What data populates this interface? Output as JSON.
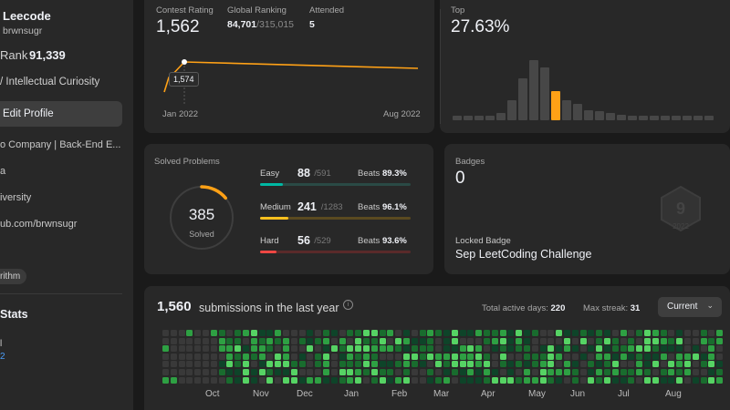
{
  "sidebar": {
    "name": "Leecode",
    "username": "brwnsugr",
    "rank_label": "Rank",
    "rank_value": "91,339",
    "bio": "/ Intellectual Curiosity",
    "edit_label": "Edit Profile",
    "company": "o Company | Back-End E...",
    "location": "a",
    "school": "iversity",
    "github": "ub.com/brwnsugr",
    "tag": "rithm",
    "stats_heading": "Stats",
    "stat_line1": "l",
    "stat_line2": "2"
  },
  "contest": {
    "rating_label": "Contest Rating",
    "rating_value": "1,562",
    "global_label": "Global Ranking",
    "global_value": "84,701",
    "global_total": "/315,015",
    "attended_label": "Attended",
    "attended_value": "5",
    "tooltip": "1,574",
    "x_start": "Jan 2022",
    "x_end": "Aug 2022"
  },
  "top": {
    "label": "Top",
    "value": "27.63%",
    "histogram": [
      0.06,
      0.06,
      0.06,
      0.06,
      0.1,
      0.28,
      0.58,
      0.82,
      0.72,
      0.4,
      0.28,
      0.22,
      0.14,
      0.12,
      0.1,
      0.07,
      0.06,
      0.06,
      0.06,
      0.06,
      0.06,
      0.06,
      0.06,
      0.06
    ],
    "highlight_index": 9,
    "accent": "#ffa116"
  },
  "solved": {
    "label": "Solved Problems",
    "total": "385",
    "total_label": "Solved",
    "total_fraction": 0.14,
    "rows": [
      {
        "name": "Easy",
        "count": "88",
        "total": "/591",
        "beats_label": "Beats",
        "beats": "89.3%",
        "fraction": 0.149,
        "color": "#00b8a3",
        "track": "#2a4a45"
      },
      {
        "name": "Medium",
        "count": "241",
        "total": "/1283",
        "beats_label": "Beats",
        "beats": "96.1%",
        "fraction": 0.188,
        "color": "#ffc01e",
        "track": "#5a4a20"
      },
      {
        "name": "Hard",
        "count": "56",
        "total": "/529",
        "beats_label": "Beats",
        "beats": "93.6%",
        "fraction": 0.106,
        "color": "#ef4743",
        "track": "#5a2a2a"
      }
    ]
  },
  "badges": {
    "label": "Badges",
    "count": "0",
    "locked_label": "Locked Badge",
    "locked_name": "Sep LeetCoding Challenge",
    "badge_number": "9",
    "badge_year": "2022"
  },
  "submissions": {
    "count": "1,560",
    "text": "submissions in the last year",
    "active_label": "Total active days:",
    "active_value": "220",
    "streak_label": "Max streak:",
    "streak_value": "31",
    "select_value": "Current",
    "months": [
      "Oct",
      "Nov",
      "Dec",
      "Jan",
      "Feb",
      "Mar",
      "Apr",
      "May",
      "Jun",
      "Jul",
      "Aug"
    ],
    "colors": [
      "#393939",
      "#0e4429",
      "#196c2e",
      "#2ea043",
      "#56d364"
    ]
  }
}
